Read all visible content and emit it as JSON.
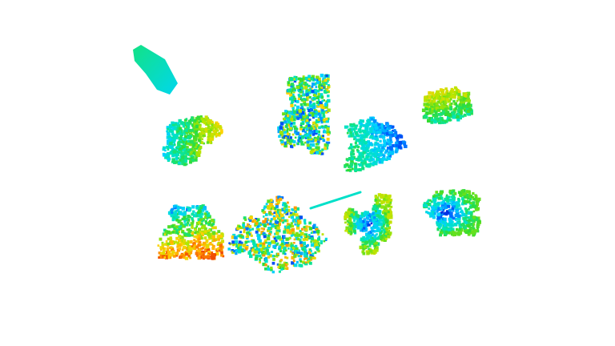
{
  "scene": {
    "background": "#ffffff",
    "colormap": "jet",
    "colormap_stops": [
      "#0000c8",
      "#0064ff",
      "#00d2ff",
      "#00e6b4",
      "#32dc32",
      "#b4e600",
      "#ffd200",
      "#ff8c00",
      "#e61e00"
    ],
    "objects": [
      {
        "kind": "slab",
        "name": "flat-slab",
        "value_low": 0.28,
        "value_high": 0.38
      },
      {
        "kind": "plant",
        "name": "plant-1",
        "value_low": 0.25,
        "value_high": 0.75,
        "gradient": "left-to-right"
      },
      {
        "kind": "plant",
        "name": "plant-2",
        "value_low": 0.1,
        "value_high": 0.75,
        "gradient": "mixed"
      },
      {
        "kind": "plant",
        "name": "plant-3",
        "value_low": 0.1,
        "value_high": 0.5,
        "gradient": "right-to-left"
      },
      {
        "kind": "plant",
        "name": "plant-4",
        "value_low": 0.3,
        "value_high": 0.7,
        "gradient": "top-warm"
      },
      {
        "kind": "plant",
        "name": "plant-5",
        "value_low": 0.15,
        "value_high": 0.95,
        "gradient": "bottom-warm"
      },
      {
        "kind": "plant",
        "name": "plant-6",
        "value_low": 0.1,
        "value_high": 0.85,
        "gradient": "mixed"
      },
      {
        "kind": "stick",
        "name": "thin-stick",
        "value_low": 0.32,
        "value_high": 0.36
      },
      {
        "kind": "plant",
        "name": "plant-7",
        "value_low": 0.05,
        "value_high": 0.65,
        "gradient": "center-cool"
      },
      {
        "kind": "plant",
        "name": "plant-8",
        "value_low": 0.05,
        "value_high": 0.55,
        "gradient": "center-cool"
      }
    ]
  }
}
